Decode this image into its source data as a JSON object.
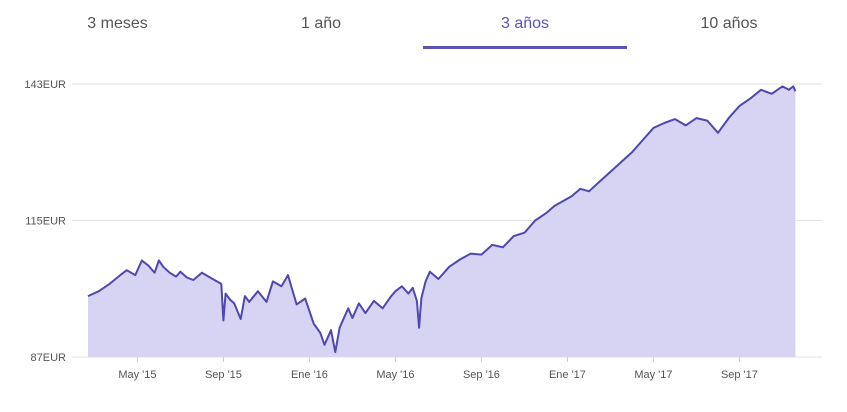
{
  "tabs": [
    {
      "label": "3 meses",
      "active": false
    },
    {
      "label": "1 año",
      "active": false
    },
    {
      "label": "3 años",
      "active": true
    },
    {
      "label": "10 años",
      "active": false
    }
  ],
  "colors": {
    "accent": "#5a54b8",
    "line": "#4e48b0",
    "fill": "#d6d4f2",
    "grid": "#e3e3e3",
    "text": "#555555"
  },
  "chart_data": {
    "type": "area",
    "title": "",
    "xlabel": "",
    "ylabel": "",
    "ylim": [
      87,
      143
    ],
    "yticks": [
      87,
      115,
      143
    ],
    "ytick_labels": [
      "87EUR",
      "115EUR",
      "143EUR"
    ],
    "xticks": [
      {
        "label": "May '15",
        "x": 3.0
      },
      {
        "label": "Sep '15",
        "x": 7.0
      },
      {
        "label": "Ene '16",
        "x": 11.0
      },
      {
        "label": "May '16",
        "x": 15.0
      },
      {
        "label": "Sep '16",
        "x": 19.0
      },
      {
        "label": "Ene '17",
        "x": 23.0
      },
      {
        "label": "May '17",
        "x": 27.0
      },
      {
        "label": "Sep '17",
        "x": 31.0
      }
    ],
    "xlim": [
      0.7,
      33.7
    ],
    "series": [
      {
        "x": [
          0.7,
          1.2,
          1.7,
          2.2,
          2.5,
          2.9,
          3.2,
          3.5,
          3.8,
          4.0,
          4.2,
          4.5,
          4.8,
          5.0,
          5.3,
          5.6,
          6.0,
          6.5,
          6.9,
          7.0,
          7.1,
          7.3,
          7.5,
          7.8,
          8.0,
          8.2,
          8.6,
          9.0,
          9.3,
          9.7,
          10.0,
          10.4,
          10.8,
          11.2,
          11.5,
          11.7,
          12.0,
          12.2,
          12.4,
          12.6,
          12.8,
          13.0,
          13.3,
          13.6,
          14.0,
          14.4,
          14.8,
          15.0,
          15.3,
          15.6,
          15.8,
          16.0,
          16.1,
          16.2,
          16.4,
          16.6,
          17.0,
          17.5,
          18.0,
          18.5,
          19.0,
          19.5,
          20.0,
          20.5,
          21.0,
          21.5,
          22.0,
          22.4,
          22.8,
          23.2,
          23.6,
          24.0,
          24.5,
          25.0,
          25.5,
          26.0,
          26.5,
          27.0,
          27.5,
          28.0,
          28.5,
          29.0,
          29.5,
          30.0,
          30.5,
          31.0,
          31.5,
          32.0,
          32.5,
          33.0,
          33.3,
          33.5,
          33.6
        ],
        "y": [
          99.5,
          100.5,
          102.0,
          103.8,
          104.8,
          103.8,
          106.8,
          105.8,
          104.3,
          106.8,
          105.5,
          104.3,
          103.5,
          104.5,
          103.3,
          102.8,
          104.3,
          103.0,
          102.0,
          94.5,
          100.0,
          98.8,
          98.0,
          94.8,
          99.5,
          98.3,
          100.5,
          98.3,
          102.5,
          101.5,
          103.8,
          97.8,
          99.0,
          93.8,
          92.0,
          89.5,
          92.5,
          88.0,
          93.0,
          95.0,
          97.0,
          95.0,
          98.0,
          96.0,
          98.5,
          97.0,
          99.5,
          100.5,
          101.5,
          100.0,
          101.2,
          98.5,
          93.0,
          99.0,
          102.5,
          104.5,
          103.0,
          105.5,
          107.0,
          108.2,
          108.0,
          110.0,
          109.5,
          111.8,
          112.5,
          115.0,
          116.5,
          118.0,
          119.0,
          120.0,
          121.5,
          121.0,
          123.0,
          125.0,
          127.0,
          129.0,
          131.5,
          134.0,
          135.0,
          135.8,
          134.5,
          136.0,
          135.5,
          133.0,
          136.0,
          138.5,
          140.0,
          141.8,
          141.0,
          142.5,
          141.8,
          142.5,
          141.5
        ]
      }
    ]
  }
}
